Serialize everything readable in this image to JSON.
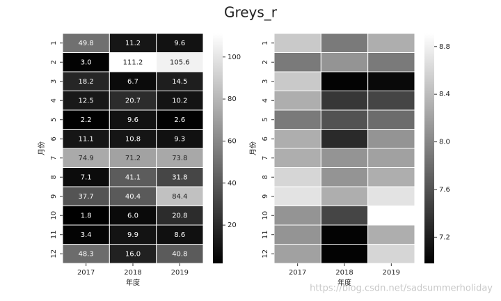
{
  "title": "Greys_r",
  "watermark": "https://blog.csdn.net/sadsummerholiday",
  "chart_data": [
    {
      "type": "heatmap",
      "x_label": "年度",
      "y_label": "月份",
      "x": [
        "2017",
        "2018",
        "2019"
      ],
      "y": [
        "1",
        "2",
        "3",
        "4",
        "5",
        "6",
        "7",
        "8",
        "9",
        "10",
        "11",
        "12"
      ],
      "values": [
        [
          49.8,
          11.2,
          9.6
        ],
        [
          3.0,
          111.2,
          105.6
        ],
        [
          18.2,
          6.7,
          14.5
        ],
        [
          12.5,
          20.7,
          10.2
        ],
        [
          2.2,
          9.6,
          2.6
        ],
        [
          11.1,
          10.8,
          9.3
        ],
        [
          74.9,
          71.2,
          73.8
        ],
        [
          7.1,
          41.1,
          31.8
        ],
        [
          37.7,
          40.4,
          84.4
        ],
        [
          1.8,
          6.0,
          20.8
        ],
        [
          3.4,
          9.9,
          8.6
        ],
        [
          48.3,
          16.0,
          40.8
        ]
      ],
      "value_labels": [
        [
          "49.8",
          "11.2",
          "9.6"
        ],
        [
          "3.0",
          "111.2",
          "105.6"
        ],
        [
          "18.2",
          "6.7",
          "14.5"
        ],
        [
          "12.5",
          "20.7",
          "10.2"
        ],
        [
          "2.2",
          "9.6",
          "2.6"
        ],
        [
          "11.1",
          "10.8",
          "9.3"
        ],
        [
          "74.9",
          "71.2",
          "73.8"
        ],
        [
          "7.1",
          "41.1",
          "31.8"
        ],
        [
          "37.7",
          "40.4",
          "84.4"
        ],
        [
          "1.8",
          "6.0",
          "20.8"
        ],
        [
          "3.4",
          "9.9",
          "8.6"
        ],
        [
          "48.3",
          "16.0",
          "40.8"
        ]
      ],
      "colormap": "Greys_r",
      "clim": [
        1.8,
        111.2
      ],
      "cticks": [
        20,
        40,
        60,
        80,
        100
      ]
    },
    {
      "type": "heatmap",
      "x_label": "年度",
      "y_label": "月份",
      "x": [
        "2017",
        "2018",
        "2019"
      ],
      "y": [
        "1",
        "2",
        "3",
        "4",
        "5",
        "6",
        "7",
        "8",
        "9",
        "10",
        "11",
        "12"
      ],
      "values": [
        [
          8.5,
          7.9,
          8.3
        ],
        [
          7.9,
          8.1,
          7.9
        ],
        [
          8.5,
          7.0,
          7.05
        ],
        [
          8.3,
          7.4,
          7.5
        ],
        [
          7.9,
          7.6,
          7.8
        ],
        [
          8.3,
          7.3,
          8.1
        ],
        [
          8.3,
          8.1,
          8.2
        ],
        [
          8.6,
          8.1,
          8.3
        ],
        [
          8.7,
          8.3,
          8.7
        ],
        [
          8.1,
          7.5,
          8.91
        ],
        [
          8.1,
          7.0,
          8.3
        ],
        [
          8.2,
          7.0,
          8.6
        ]
      ],
      "colormap": "Greys_r",
      "clim": [
        6.98,
        8.91
      ],
      "cticks": [
        7.2,
        7.6,
        {
          "value": 8,
          "label": "8.0"
        },
        8.4,
        8.8
      ]
    }
  ]
}
